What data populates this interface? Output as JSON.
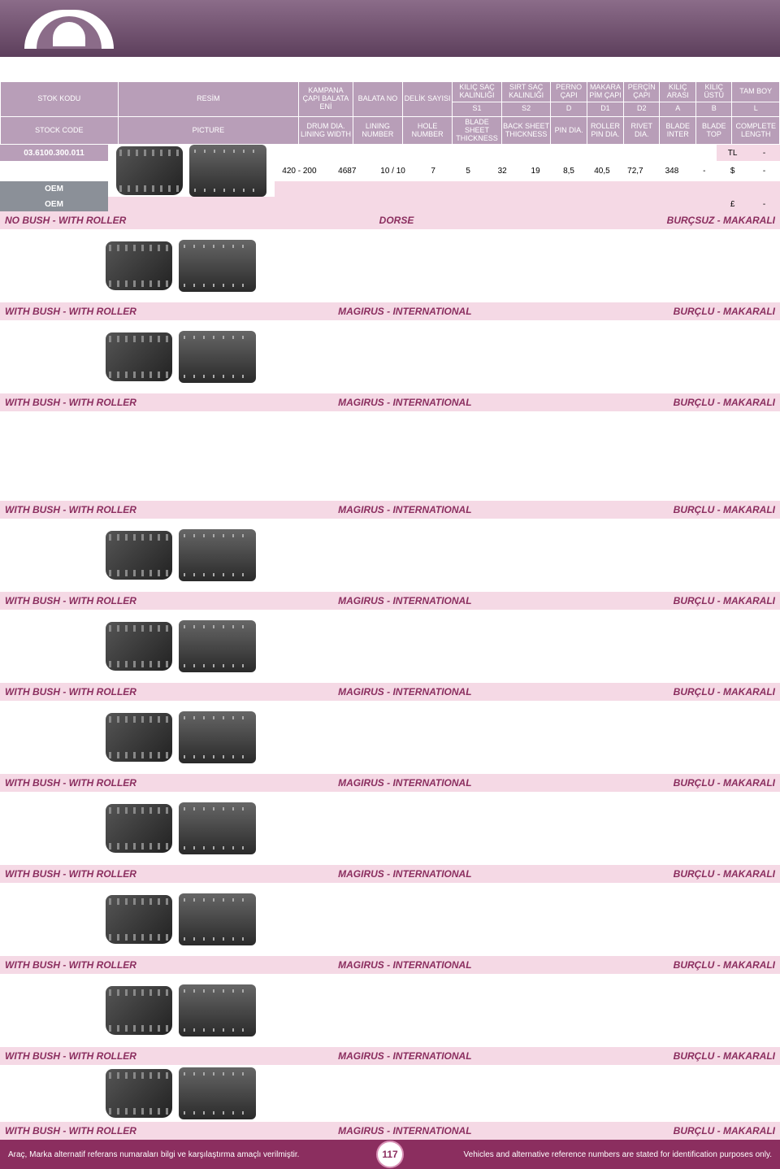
{
  "header": {
    "r1": {
      "stok_kodu": "STOK KODU",
      "resim": "RESİM",
      "kampana": "KAMPANA ÇAPI BALATA ENİ",
      "balata": "BALATA NO",
      "delik": "DELİK SAYISI",
      "kilic_sac": "KILIÇ SAÇ KALINLIĞI",
      "sirt_sac": "SIRT SAÇ KALINLIĞI",
      "perno": "PERNO ÇAPI",
      "makara": "MAKARA PİM ÇAPI",
      "percin": "PERÇİN ÇAPI",
      "kilic_arasi": "KILIÇ ARASI",
      "kilic_ustu": "KILIÇ ÜSTÜ",
      "tam_boy": "TAM BOY"
    },
    "r2": {
      "s1": "S1",
      "s2": "S2",
      "d": "D",
      "d1": "D1",
      "d2": "D2",
      "a": "A",
      "b": "B",
      "l": "L"
    },
    "r3": {
      "stock_code": "STOCK CODE",
      "picture": "PICTURE",
      "drum": "DRUM DIA. LINING WIDTH",
      "lining": "LINING NUMBER",
      "hole": "HOLE NUMBER",
      "blade_sheet": "BLADE SHEET THICKNESS",
      "back_sheet": "BACK SHEET THICKNESS",
      "pin": "PIN DIA.",
      "roller_pin": "ROLLER PIN DIA.",
      "rivet": "RIVET DIA.",
      "blade_inter": "BLADE INTER",
      "blade_top": "BLADE TOP",
      "complete": "COMPLETE LENGTH"
    }
  },
  "product": {
    "code": "03.6100.300.011",
    "values": {
      "kampana": "420 - 200",
      "balata": "4687",
      "delik": "10 / 10",
      "s1": "7",
      "s2": "5",
      "d": "32",
      "d1": "19",
      "d2": "8,5",
      "a": "40,5",
      "b": "72,7",
      "l": "348",
      "extra": "-"
    },
    "oem": "OEM",
    "currency": {
      "tl": "TL",
      "usd": "$",
      "gbp": "£"
    },
    "dash": "-"
  },
  "sections": [
    {
      "left": "NO BUSH - WITH ROLLER",
      "center": "DORSE",
      "right": "BURÇSUZ - MAKARALI",
      "img": true
    },
    {
      "left": "WITH BUSH - WITH ROLLER",
      "center": "MAGIRUS - INTERNATIONAL",
      "right": "BURÇLU - MAKARALI",
      "img": true
    },
    {
      "left": "WITH BUSH - WITH ROLLER",
      "center": "MAGIRUS - INTERNATIONAL",
      "right": "BURÇLU - MAKARALI",
      "img": false,
      "tall": true
    },
    {
      "left": "WITH BUSH - WITH ROLLER",
      "center": "MAGIRUS - INTERNATIONAL",
      "right": "BURÇLU - MAKARALI",
      "img": true
    },
    {
      "left": "WITH BUSH - WITH ROLLER",
      "center": "MAGIRUS - INTERNATIONAL",
      "right": "BURÇLU - MAKARALI",
      "img": true
    },
    {
      "left": "WITH BUSH - WITH ROLLER",
      "center": "MAGIRUS - INTERNATIONAL",
      "right": "BURÇLU - MAKARALI",
      "img": true
    },
    {
      "left": "WITH BUSH - WITH ROLLER",
      "center": "MAGIRUS - INTERNATIONAL",
      "right": "BURÇLU - MAKARALI",
      "img": true
    },
    {
      "left": "WITH BUSH - WITH ROLLER",
      "center": "MAGIRUS - INTERNATIONAL",
      "right": "BURÇLU - MAKARALI",
      "img": true
    },
    {
      "left": "WITH BUSH - WITH ROLLER",
      "center": "MAGIRUS - INTERNATIONAL",
      "right": "BURÇLU - MAKARALI",
      "img": true
    },
    {
      "left": "WITH BUSH - WITH ROLLER",
      "center": "MAGIRUS - INTERNATIONAL",
      "right": "BURÇLU - MAKARALI",
      "img": true,
      "short": true
    },
    {
      "left": "WITH BUSH - WITH ROLLER",
      "center": "MAGIRUS - INTERNATIONAL",
      "right": "BURÇLU - MAKARALI",
      "img": false,
      "none": true
    }
  ],
  "footer": {
    "left": "Araç, Marka alternatif referans numaraları bilgi ve karşılaştırma amaçlı verilmiştir.",
    "page": "117",
    "right": "Vehicles and alternative reference numbers are stated for identification purposes only."
  },
  "col_widths": {
    "code": 130,
    "img": 200,
    "kampana": 60,
    "balata": 55,
    "delik": 55,
    "narrow": 40
  }
}
